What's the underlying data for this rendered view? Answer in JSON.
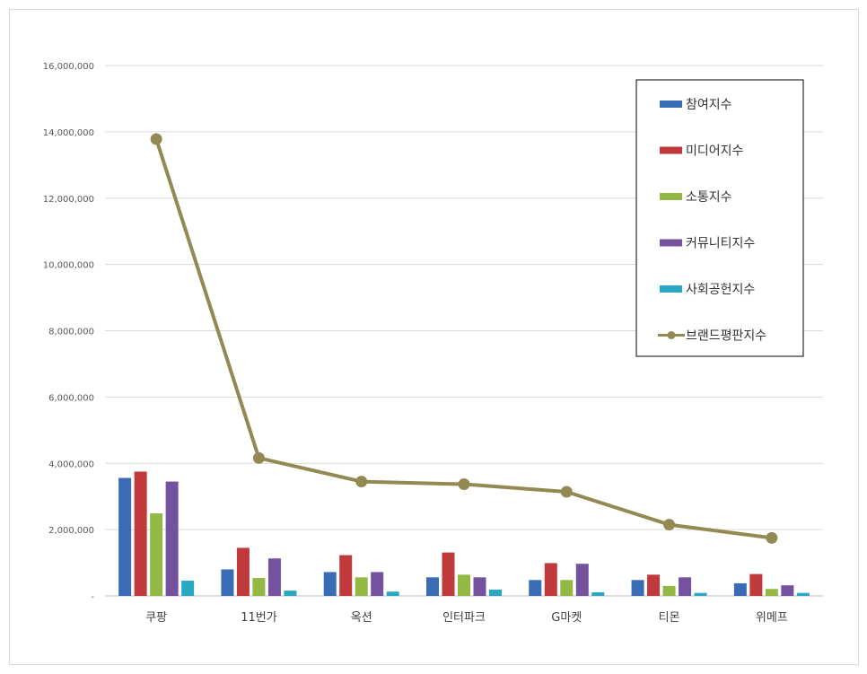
{
  "chart_data": {
    "type": "bar",
    "categories": [
      "쿠팡",
      "11번가",
      "옥션",
      "인터파크",
      "G마켓",
      "티몬",
      "위메프"
    ],
    "series": [
      {
        "name": "참여지수",
        "type": "bar",
        "color": "#3a6bb5",
        "values": [
          3560000,
          800000,
          720000,
          560000,
          480000,
          480000,
          380000
        ]
      },
      {
        "name": "미디어지수",
        "type": "bar",
        "color": "#c0393b",
        "values": [
          3750000,
          1450000,
          1230000,
          1310000,
          990000,
          640000,
          660000
        ]
      },
      {
        "name": "소통지수",
        "type": "bar",
        "color": "#93b843",
        "values": [
          2490000,
          540000,
          560000,
          640000,
          480000,
          300000,
          210000
        ]
      },
      {
        "name": "커뮤니티지수",
        "type": "bar",
        "color": "#7452a0",
        "values": [
          3450000,
          1130000,
          720000,
          560000,
          970000,
          560000,
          320000
        ]
      },
      {
        "name": "사회공헌지수",
        "type": "bar",
        "color": "#2aa7c3",
        "values": [
          460000,
          160000,
          130000,
          190000,
          110000,
          90000,
          90000
        ]
      },
      {
        "name": "브랜드평판지수",
        "type": "line",
        "color": "#938953",
        "values": [
          13780000,
          4160000,
          3450000,
          3370000,
          3140000,
          2150000,
          1750000
        ]
      }
    ],
    "yTicks": [
      "-",
      "2,000,000",
      "4,000,000",
      "6,000,000",
      "8,000,000",
      "10,000,000",
      "12,000,000",
      "14,000,000",
      "16,000,000"
    ],
    "ylim": [
      0,
      16000000
    ],
    "title": "",
    "xlabel": "",
    "ylabel": "",
    "grid": true,
    "legend_position": "top-right"
  }
}
